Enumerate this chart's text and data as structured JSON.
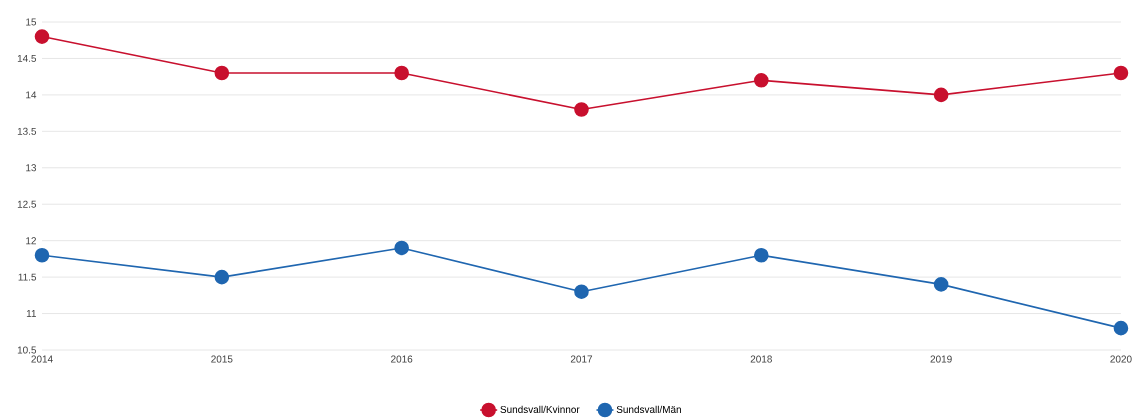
{
  "chart_data": {
    "type": "line",
    "categories": [
      "2014",
      "2015",
      "2016",
      "2017",
      "2018",
      "2019",
      "2020"
    ],
    "series": [
      {
        "name": "Sundsvall/Kvinnor",
        "color": "#c8102e",
        "values": [
          14.8,
          14.3,
          14.3,
          13.8,
          14.2,
          14.0,
          14.3
        ]
      },
      {
        "name": "Sundsvall/Män",
        "color": "#1f66b0",
        "values": [
          11.8,
          11.5,
          11.9,
          11.3,
          11.8,
          11.4,
          10.8
        ]
      }
    ],
    "ylim": [
      10.5,
      15
    ],
    "yticks": [
      10.5,
      11,
      11.5,
      12,
      12.5,
      13,
      13.5,
      14,
      14.5,
      15
    ],
    "grid": "y",
    "legend": "bottom",
    "marker": "circle",
    "line_style": "solid"
  }
}
